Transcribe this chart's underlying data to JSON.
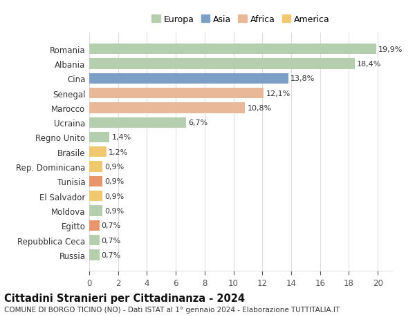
{
  "categories": [
    "Russia",
    "Repubblica Ceca",
    "Egitto",
    "Moldova",
    "El Salvador",
    "Tunisia",
    "Rep. Dominicana",
    "Brasile",
    "Regno Unito",
    "Ucraina",
    "Marocco",
    "Senegal",
    "Cina",
    "Albania",
    "Romania"
  ],
  "values": [
    0.7,
    0.7,
    0.7,
    0.9,
    0.9,
    0.9,
    0.9,
    1.2,
    1.4,
    6.7,
    10.8,
    12.1,
    13.8,
    18.4,
    19.9
  ],
  "colors": [
    "#b5cead",
    "#b5cead",
    "#e8956d",
    "#b5cead",
    "#f0c870",
    "#e8956d",
    "#f0c870",
    "#f0c870",
    "#b5cead",
    "#b5cead",
    "#e8b898",
    "#e8b898",
    "#7b9fc7",
    "#b5cead",
    "#b5cead"
  ],
  "labels": [
    "0,7%",
    "0,7%",
    "0,7%",
    "0,9%",
    "0,9%",
    "0,9%",
    "0,9%",
    "1,2%",
    "1,4%",
    "6,7%",
    "10,8%",
    "12,1%",
    "13,8%",
    "18,4%",
    "19,9%"
  ],
  "legend": [
    {
      "label": "Europa",
      "color": "#b5cead"
    },
    {
      "label": "Asia",
      "color": "#7b9fc7"
    },
    {
      "label": "Africa",
      "color": "#e8b898"
    },
    {
      "label": "America",
      "color": "#f0c870"
    }
  ],
  "title": "Cittadini Stranieri per Cittadinanza - 2024",
  "subtitle": "COMUNE DI BORGO TICINO (NO) - Dati ISTAT al 1° gennaio 2024 - Elaborazione TUTTITALIA.IT",
  "xlim": [
    0,
    21
  ],
  "xticks": [
    0,
    2,
    4,
    6,
    8,
    10,
    12,
    14,
    16,
    18,
    20
  ],
  "background_color": "#ffffff",
  "grid_color": "#dddddd",
  "title_fontsize": 10.5,
  "subtitle_fontsize": 7.5,
  "label_fontsize": 8,
  "tick_fontsize": 8.5,
  "legend_fontsize": 9
}
